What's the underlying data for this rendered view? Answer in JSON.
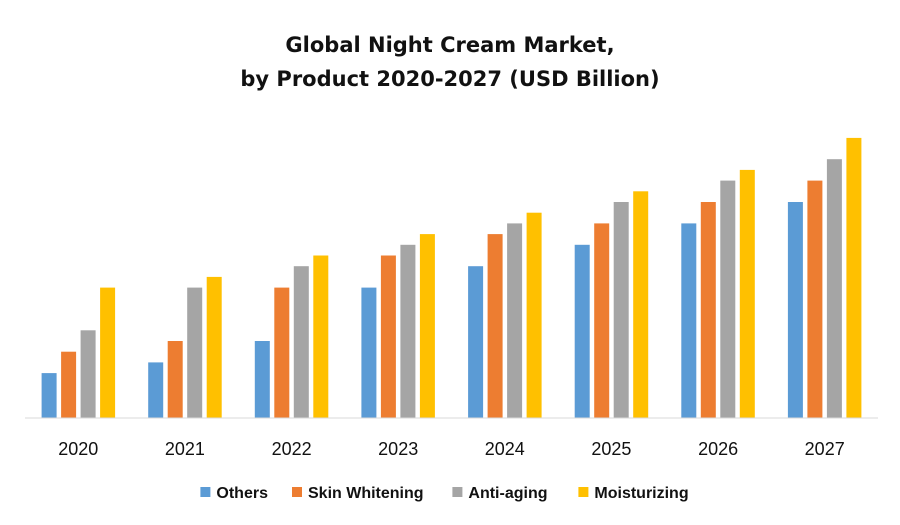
{
  "chart_data": {
    "type": "bar",
    "title_lines": [
      "Global Night Cream Market,",
      "by Product 2020-2027 (USD Billion)"
    ],
    "categories": [
      "2020",
      "2021",
      "2022",
      "2023",
      "2024",
      "2025",
      "2026",
      "2027"
    ],
    "series": [
      {
        "name": "Others",
        "color": "#5B9BD5",
        "values": [
          4.2,
          5.2,
          7.2,
          12.2,
          14.2,
          16.2,
          18.2,
          20.2
        ]
      },
      {
        "name": "Skin Whitening",
        "color": "#ED7D31",
        "values": [
          6.2,
          7.2,
          12.2,
          15.2,
          17.2,
          18.2,
          20.2,
          22.2
        ]
      },
      {
        "name": "Anti-aging",
        "color": "#A5A5A5",
        "values": [
          8.2,
          12.2,
          14.2,
          16.2,
          18.2,
          20.2,
          22.2,
          24.2
        ]
      },
      {
        "name": "Moisturizing",
        "color": "#FFC000",
        "values": [
          12.2,
          13.2,
          15.2,
          17.2,
          19.2,
          21.2,
          23.2,
          26.2
        ]
      }
    ],
    "ylim": [
      0,
      26
    ],
    "legend_position": "bottom",
    "grid": false
  }
}
